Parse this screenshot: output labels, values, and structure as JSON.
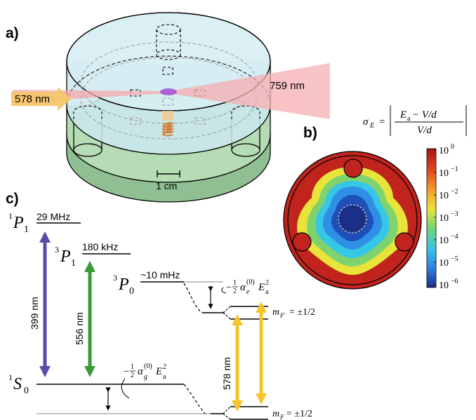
{
  "panel_a": {
    "label": "a)",
    "beam_in": "578 nm",
    "beam_lattice": "759 nm",
    "scale_bar": "1 cm"
  },
  "panel_b": {
    "label": "b)",
    "formula_lhs": "σ",
    "formula_lhs_sub": "E",
    "formula_num": "E",
    "formula_num_sub": "a",
    "formula_num_rest": " − V/d",
    "formula_den": "V/d",
    "colorbar_ticks": [
      {
        "base": "10",
        "exp": "0"
      },
      {
        "base": "10",
        "exp": "−1"
      },
      {
        "base": "10",
        "exp": "−2"
      },
      {
        "base": "10",
        "exp": "−3"
      },
      {
        "base": "10",
        "exp": "−4"
      },
      {
        "base": "10",
        "exp": "−5"
      },
      {
        "base": "10",
        "exp": "−6"
      }
    ],
    "colormap": [
      "#1b3c8c",
      "#2f7fe0",
      "#35c8e8",
      "#5fd27a",
      "#e6e83a",
      "#f0a030",
      "#c8281e"
    ]
  },
  "panel_c": {
    "label": "c)",
    "levels": {
      "p1": {
        "sup": "1",
        "name": "P",
        "sub": "1",
        "width": "29 MHz"
      },
      "p1_triplet": {
        "sup": "3",
        "name": "P",
        "sub": "1",
        "width": "180 kHz"
      },
      "p0_triplet": {
        "sup": "3",
        "name": "P",
        "sub": "0",
        "width": "~10 mHz"
      },
      "s0": {
        "sup": "1",
        "name": "S",
        "sub": "0"
      }
    },
    "transitions": [
      {
        "label": "399 nm",
        "color": "#5b4aa8"
      },
      {
        "label": "556 nm",
        "color": "#3a9a3a"
      },
      {
        "label": "578 nm",
        "color": "#f5c42a"
      }
    ],
    "shift_excited": {
      "prefix": "−",
      "frac_num": "1",
      "frac_den": "2",
      "alpha": "α",
      "alpha_sub": "e",
      "alpha_sup": "(0)",
      "field": "E",
      "field_sub": "a",
      "field_sup": "2"
    },
    "shift_ground": {
      "prefix": "−",
      "frac_num": "1",
      "frac_den": "2",
      "alpha": "α",
      "alpha_sub": "g",
      "alpha_sup": "(0)",
      "field": "E",
      "field_sub": "a",
      "field_sup": "2"
    },
    "mf_upper": {
      "m": "m",
      "sub": "F′",
      "value": " = ±1/2"
    },
    "mf_lower": {
      "m": "m",
      "sub": "F",
      "value": " = ±1/2"
    }
  }
}
